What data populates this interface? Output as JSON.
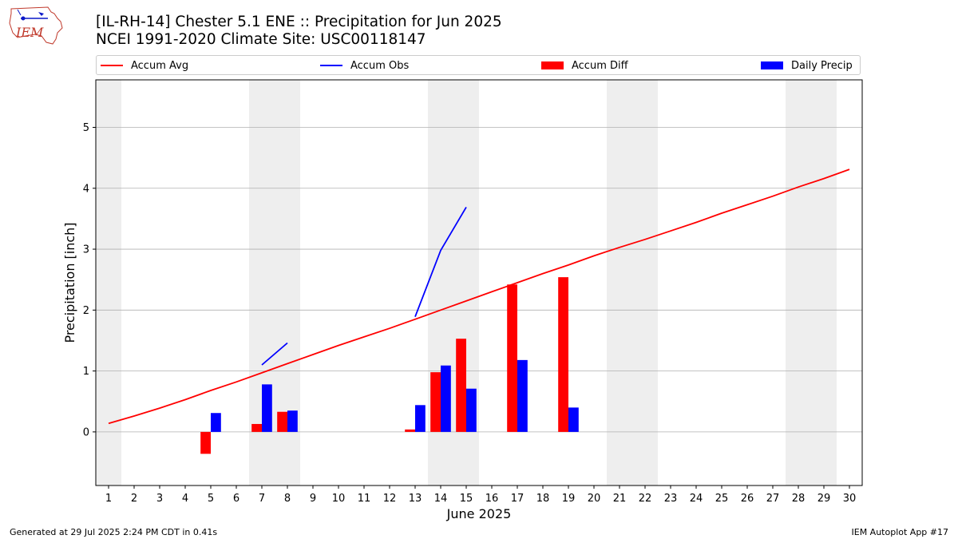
{
  "header": {
    "logo_text": "IEM",
    "title_line1": "[IL-RH-14] Chester 5.1 ENE :: Precipitation for Jun 2025",
    "title_line2": "NCEI 1991-2020 Climate Site: USC00118147"
  },
  "legend": [
    {
      "label": "Accum Avg",
      "kind": "line",
      "color": "#ff0000"
    },
    {
      "label": "Accum Obs",
      "kind": "line",
      "color": "#0000ff"
    },
    {
      "label": "Accum Diff",
      "kind": "patch",
      "color": "#ff0000"
    },
    {
      "label": "Daily Precip",
      "kind": "patch",
      "color": "#0000ff"
    }
  ],
  "footer": {
    "left": "Generated at 29 Jul 2025 2:24 PM CDT in 0.41s",
    "right": "IEM Autoplot App #17"
  },
  "chart_data": {
    "type": "bar",
    "xlabel": "June 2025",
    "ylabel": "Precipitation [inch]",
    "xlim": [
      0.5,
      30.5
    ],
    "ylim": [
      -0.88,
      5.78
    ],
    "yticks": [
      0,
      1,
      2,
      3,
      4,
      5
    ],
    "grid": "horizontal",
    "legend_position": "top",
    "x": [
      1,
      2,
      3,
      4,
      5,
      6,
      7,
      8,
      9,
      10,
      11,
      12,
      13,
      14,
      15,
      16,
      17,
      18,
      19,
      20,
      21,
      22,
      23,
      24,
      25,
      26,
      27,
      28,
      29,
      30
    ],
    "shaded_weekends": [
      [
        0.5,
        1.5
      ],
      [
        6.5,
        8.5
      ],
      [
        13.5,
        15.5
      ],
      [
        20.5,
        22.5
      ],
      [
        27.5,
        29.5
      ]
    ],
    "series": [
      {
        "name": "Accum Avg",
        "type": "line",
        "color": "#ff0000",
        "values": [
          0.14,
          0.26,
          0.39,
          0.53,
          0.68,
          0.82,
          0.97,
          1.12,
          1.27,
          1.42,
          1.56,
          1.7,
          1.85,
          2.0,
          2.15,
          2.3,
          2.45,
          2.6,
          2.74,
          2.89,
          3.03,
          3.16,
          3.3,
          3.44,
          3.59,
          3.73,
          3.87,
          4.02,
          4.16,
          4.31
        ]
      },
      {
        "name": "Accum Obs",
        "type": "line",
        "color": "#0000ff",
        "values": [
          null,
          null,
          null,
          null,
          null,
          null,
          1.1,
          1.46,
          null,
          null,
          null,
          null,
          1.89,
          2.98,
          3.69,
          null,
          null,
          null,
          null,
          null,
          null,
          null,
          null,
          null,
          null,
          null,
          null,
          null,
          null,
          null
        ]
      },
      {
        "name": "Accum Diff",
        "type": "bar",
        "color": "#ff0000",
        "values": [
          null,
          null,
          null,
          null,
          -0.36,
          null,
          0.13,
          0.33,
          null,
          null,
          null,
          null,
          0.04,
          0.98,
          1.53,
          null,
          2.42,
          null,
          2.54,
          null,
          null,
          null,
          null,
          null,
          null,
          null,
          null,
          null,
          null,
          null
        ]
      },
      {
        "name": "Daily Precip",
        "type": "bar",
        "color": "#0000ff",
        "values": [
          null,
          null,
          null,
          null,
          0.31,
          null,
          0.78,
          0.35,
          null,
          null,
          null,
          null,
          0.44,
          1.09,
          0.71,
          null,
          1.18,
          null,
          0.4,
          null,
          null,
          null,
          null,
          null,
          null,
          null,
          null,
          null,
          null,
          null
        ]
      }
    ]
  }
}
